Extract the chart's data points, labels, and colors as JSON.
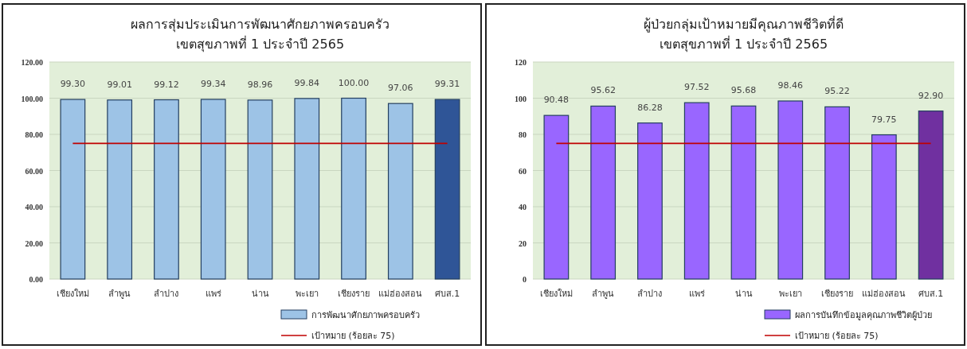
{
  "chart_data": [
    {
      "type": "bar",
      "title": "ผลการสุ่มประเมินการพัฒนาศักยภาพครอบครัว",
      "subtitle": "เขตสุขภาพที่ 1 ประจำปี 2565",
      "categories": [
        "เชียงใหม่",
        "ลำพูน",
        "ลำปาง",
        "แพร่",
        "น่าน",
        "พะเยา",
        "เชียงราย",
        "แม่ฮ่องสอน",
        "ศบส.1"
      ],
      "series": [
        {
          "name": "การพัฒนาศักยภาพครอบครัว",
          "color": "#9dc3e6",
          "colors": [
            "#9dc3e6",
            "#9dc3e6",
            "#9dc3e6",
            "#9dc3e6",
            "#9dc3e6",
            "#9dc3e6",
            "#9dc3e6",
            "#9dc3e6",
            "#2f5597"
          ],
          "values": [
            99.3,
            99.01,
            99.12,
            99.34,
            98.96,
            99.84,
            100.0,
            97.06,
            99.31
          ],
          "value_labels": [
            "99.30",
            "99.01",
            "99.12",
            "99.34",
            "98.96",
            "99.84",
            "100.00",
            "97.06",
            "99.31"
          ]
        }
      ],
      "ylim": [
        0,
        120
      ],
      "yticks": [
        {
          "value": 0,
          "label": "0.00"
        },
        {
          "value": 20,
          "label": "20.00"
        },
        {
          "value": 40,
          "label": "40.00"
        },
        {
          "value": 60,
          "label": "60.00"
        },
        {
          "value": 80,
          "label": "80.00"
        },
        {
          "value": 100,
          "label": "100.00"
        },
        {
          "value": 120,
          "label": "120.00"
        }
      ],
      "ref_lines": [
        {
          "axis": "y",
          "value": 75,
          "label": "เป้าหมาย (ร้อยละ 75)",
          "color": "#c00000"
        }
      ],
      "grid": "y",
      "legend": "bottom right"
    },
    {
      "type": "bar",
      "title": "ผู้ป่วยกลุ่มเป้าหมายมีคุณภาพชีวิตที่ดี",
      "subtitle": "เขตสุขภาพที่ 1 ประจำปี 2565",
      "categories": [
        "เชียงใหม่",
        "ลำพูน",
        "ลำปาง",
        "แพร่",
        "น่าน",
        "พะเยา",
        "เชียงราย",
        "แม่ฮ่องสอน",
        "ศบส.1"
      ],
      "series": [
        {
          "name": "ผลการบันทึกข้อมูลคุณภาพชีวิตผู้ป่วย",
          "color": "#9966ff",
          "colors": [
            "#9966ff",
            "#9966ff",
            "#9966ff",
            "#9966ff",
            "#9966ff",
            "#9966ff",
            "#9966ff",
            "#9966ff",
            "#7030a0"
          ],
          "values": [
            90.48,
            95.62,
            86.28,
            97.52,
            95.68,
            98.46,
            95.22,
            79.75,
            92.9
          ],
          "value_labels": [
            "90.48",
            "95.62",
            "86.28",
            "97.52",
            "95.68",
            "98.46",
            "95.22",
            "79.75",
            "92.90"
          ]
        }
      ],
      "ylim": [
        0,
        120
      ],
      "yticks": [
        0,
        20,
        40,
        60,
        80,
        100,
        120
      ],
      "ref_lines": [
        {
          "axis": "y",
          "value": 75,
          "label": "เป้าหมาย (ร้อยละ 75)",
          "color": "#c00000"
        }
      ],
      "grid": "y",
      "legend": "bottom right"
    }
  ]
}
